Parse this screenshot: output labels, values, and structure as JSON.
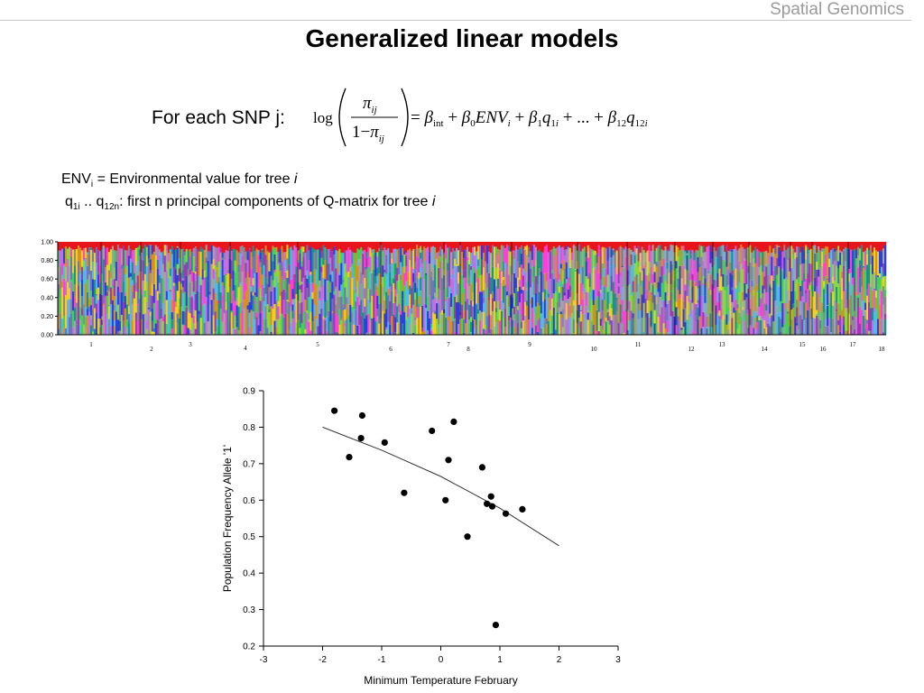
{
  "header": {
    "tag": "Spatial Genomics",
    "title": "Generalized linear models"
  },
  "equation": {
    "lead": "For each SNP j:",
    "log": "log",
    "pi_ij": "πij",
    "one_minus": "1−",
    "rhs": "= β_int + β_0 ENV_i + β_1 q_1i + ... + β_12 q_12i"
  },
  "definitions": {
    "env_main": "ENV",
    "env_sub": "i",
    "env_text": " = Environmental value for tree ",
    "env_var": "i",
    "q_a": "q",
    "q_a_sub": "1i",
    "q_mid": " .. q",
    "q_b_sub": "12n",
    "q_text": ": first n principal components of Q-matrix for tree ",
    "q_var": "i"
  },
  "structure_plot": {
    "y_ticks": [
      "0.00",
      "0.20",
      "0.40",
      "0.60",
      "0.80",
      "1.00"
    ],
    "population_labels": [
      "1",
      "2",
      "3",
      "4",
      "5",
      "6",
      "7",
      "8",
      "9",
      "10",
      "11",
      "12",
      "13",
      "14",
      "15",
      "16",
      "17",
      "18"
    ],
    "palette": [
      "#e8141b",
      "#2c3fdb",
      "#9a3bb0",
      "#a3a3a3",
      "#3fd25a",
      "#8a8a8a",
      "#ff3fd6",
      "#f5cf1d",
      "#8bd83d",
      "#1c8f8f",
      "#d8901c",
      "#6a78b9",
      "#c16fe2",
      "#56b8e8"
    ]
  },
  "chart_data": {
    "type": "scatter",
    "title": "",
    "xlabel": "Minimum Temperature February",
    "ylabel": "Population Frequency Allele '1'",
    "xlim": [
      -3,
      3
    ],
    "ylim": [
      0.2,
      0.9
    ],
    "x_ticks": [
      "-3",
      "-2",
      "-1",
      "0",
      "1",
      "2",
      "3"
    ],
    "y_ticks": [
      "0.2",
      "0.3",
      "0.4",
      "0.5",
      "0.6",
      "0.7",
      "0.8",
      "0.9"
    ],
    "grid": false,
    "series": [
      {
        "points": [
          [
            -1.8,
            0.845
          ],
          [
            -1.55,
            0.718
          ],
          [
            -1.35,
            0.77
          ],
          [
            -1.33,
            0.832
          ],
          [
            -0.95,
            0.758
          ],
          [
            -0.62,
            0.62
          ],
          [
            -0.15,
            0.79
          ],
          [
            0.08,
            0.6
          ],
          [
            0.13,
            0.71
          ],
          [
            0.22,
            0.815
          ],
          [
            0.45,
            0.5
          ],
          [
            0.7,
            0.69
          ],
          [
            0.78,
            0.59
          ],
          [
            0.85,
            0.61
          ],
          [
            0.87,
            0.583
          ],
          [
            0.93,
            0.258
          ],
          [
            1.1,
            0.563
          ],
          [
            1.38,
            0.575
          ]
        ]
      }
    ],
    "fit_line": [
      [
        -2.0,
        0.8
      ],
      [
        -1.0,
        0.737
      ],
      [
        0.0,
        0.665
      ],
      [
        1.0,
        0.578
      ],
      [
        2.0,
        0.475
      ]
    ]
  }
}
